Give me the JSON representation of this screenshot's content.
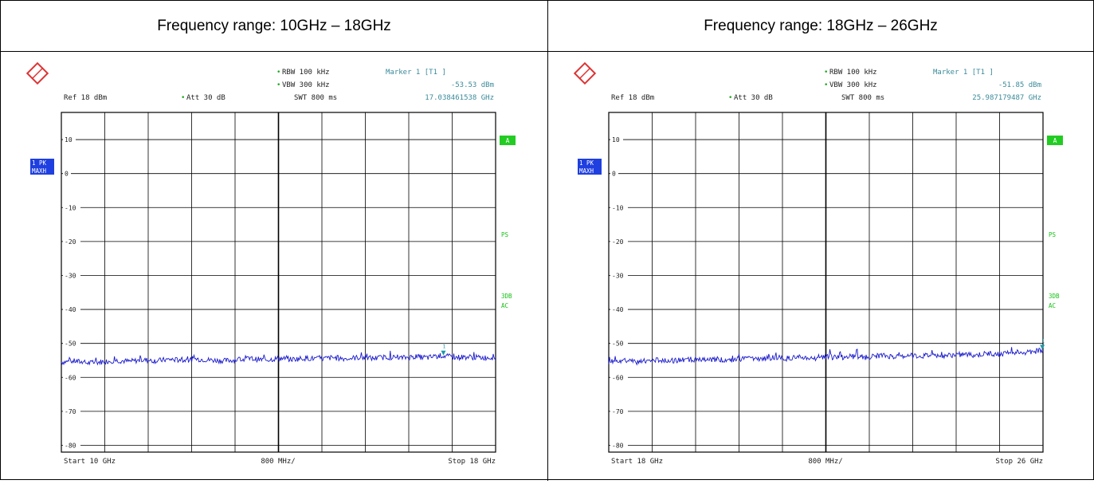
{
  "table": {
    "headers": [
      "Frequency range: 10GHz – 18GHz",
      "Frequency range: 18GHz – 26GHz"
    ]
  },
  "colors": {
    "trace": "#1a1acc",
    "marker": "#1a9aa8",
    "header_text": "#3a8a9a",
    "grid": "#000000",
    "badge_blue": "#1f3fe0",
    "badge_green": "#22cc22",
    "side_label_green": "#16c016"
  },
  "icons": [
    "rohde-schwarz-logo"
  ],
  "chart_data": [
    {
      "type": "line",
      "header": {
        "rbw": "RBW 100 kHz",
        "vbw": "VBW 300 kHz",
        "swt": "SWT 800 ms",
        "ref": "Ref  18 dBm",
        "att": "Att  30 dB",
        "marker_title": "Marker 1 [T1 ]",
        "marker_level": "-53.53 dBm",
        "marker_freq": "17.038461538 GHz"
      },
      "left_badges": [
        "1 PK",
        "MAXH"
      ],
      "right_labels": [
        "A",
        "PS",
        "3DB",
        "AC"
      ],
      "xlabel_left": "Start  10 GHz",
      "xlabel_center": "800 MHz/",
      "xlabel_right": "Stop  18 GHz",
      "y_tick_labels": [
        "10",
        "0",
        "-10",
        "-20",
        "-30",
        "-40",
        "-50",
        "-60",
        "-70",
        "-80"
      ],
      "xlim": [
        10,
        18
      ],
      "ylim": [
        -82,
        18
      ],
      "marker": {
        "x": 17.0385,
        "y": -53.53
      },
      "series": [
        {
          "x": [
            10.0,
            10.25,
            10.5,
            10.75,
            11.0,
            11.25,
            11.5,
            11.75,
            12.0,
            12.25,
            12.5,
            12.75,
            13.0,
            13.25,
            13.5,
            13.75,
            14.0,
            14.25,
            14.5,
            14.75,
            15.0,
            15.25,
            15.5,
            15.75,
            16.0,
            16.25,
            16.5,
            16.75,
            17.0,
            17.25,
            17.5,
            17.75,
            18.0
          ],
          "y": [
            -55.5,
            -55.2,
            -55.8,
            -55.4,
            -55.0,
            -55.3,
            -54.9,
            -55.1,
            -54.7,
            -55.0,
            -54.6,
            -54.9,
            -55.1,
            -54.8,
            -54.5,
            -54.9,
            -54.4,
            -54.7,
            -54.3,
            -54.6,
            -54.2,
            -54.5,
            -54.1,
            -54.4,
            -54.0,
            -54.3,
            -53.9,
            -54.2,
            -53.6,
            -54.1,
            -54.0,
            -54.2,
            -54.1
          ]
        }
      ]
    },
    {
      "type": "line",
      "header": {
        "rbw": "RBW 100 kHz",
        "vbw": "VBW 300 kHz",
        "swt": "SWT 800 ms",
        "ref": "Ref  18 dBm",
        "att": "Att  30 dB",
        "marker_title": "Marker 1 [T1 ]",
        "marker_level": "-51.85 dBm",
        "marker_freq": "25.987179487 GHz"
      },
      "left_badges": [
        "1 PK",
        "MAXH"
      ],
      "right_labels": [
        "A",
        "PS",
        "3DB",
        "AC"
      ],
      "xlabel_left": "Start  18 GHz",
      "xlabel_center": "800 MHz/",
      "xlabel_right": "Stop  26 GHz",
      "y_tick_labels": [
        "10",
        "0",
        "-10",
        "-20",
        "-30",
        "-40",
        "-50",
        "-60",
        "-70",
        "-80"
      ],
      "xlim": [
        18,
        26
      ],
      "ylim": [
        -82,
        18
      ],
      "marker": {
        "x": 25.9872,
        "y": -51.85
      },
      "series": [
        {
          "x": [
            18.0,
            18.25,
            18.5,
            18.75,
            19.0,
            19.25,
            19.5,
            19.75,
            20.0,
            20.25,
            20.5,
            20.75,
            21.0,
            21.25,
            21.5,
            21.75,
            22.0,
            22.25,
            22.5,
            22.75,
            23.0,
            23.25,
            23.5,
            23.75,
            24.0,
            24.25,
            24.5,
            24.75,
            25.0,
            25.25,
            25.5,
            25.75,
            26.0
          ],
          "y": [
            -55.3,
            -55.0,
            -55.6,
            -55.2,
            -54.8,
            -55.1,
            -54.6,
            -55.0,
            -54.7,
            -54.9,
            -54.4,
            -54.7,
            -54.2,
            -54.5,
            -54.1,
            -54.4,
            -53.9,
            -54.2,
            -53.8,
            -54.1,
            -53.6,
            -53.9,
            -53.5,
            -53.8,
            -53.4,
            -53.6,
            -53.2,
            -53.5,
            -53.0,
            -53.2,
            -52.6,
            -52.6,
            -51.9
          ]
        }
      ]
    }
  ]
}
